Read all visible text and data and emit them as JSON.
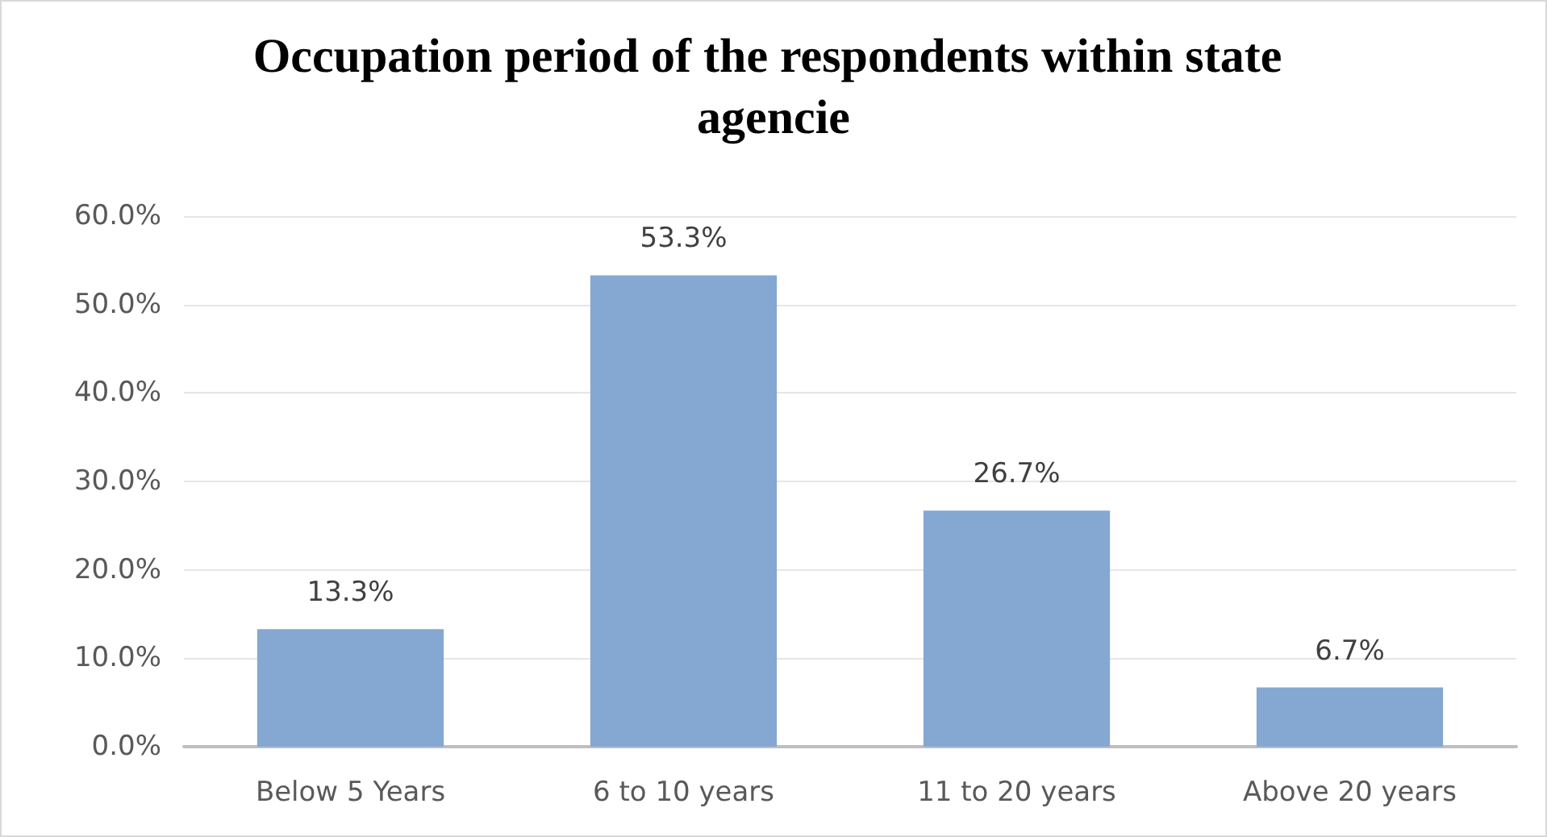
{
  "chart_data": {
    "type": "bar",
    "title": "Occupation period of the respondents within state agencie",
    "categories": [
      "Below 5 Years",
      "6 to 10 years",
      "11 to 20 years",
      "Above 20 years"
    ],
    "values": [
      13.3,
      53.3,
      26.7,
      6.7
    ],
    "value_labels": [
      "13.3%",
      "53.3%",
      "26.7%",
      "6.7%"
    ],
    "color": "#84a8d1",
    "ylim": [
      0,
      60
    ],
    "yticks": [
      {
        "value": 0,
        "label": "0.0%"
      },
      {
        "value": 10,
        "label": "10.0%"
      },
      {
        "value": 20,
        "label": "20.0%"
      },
      {
        "value": 30,
        "label": "30.0%"
      },
      {
        "value": 40,
        "label": "40.0%"
      },
      {
        "value": 50,
        "label": "50.0%"
      },
      {
        "value": 60,
        "label": "60.0%"
      }
    ],
    "grid": "y"
  }
}
